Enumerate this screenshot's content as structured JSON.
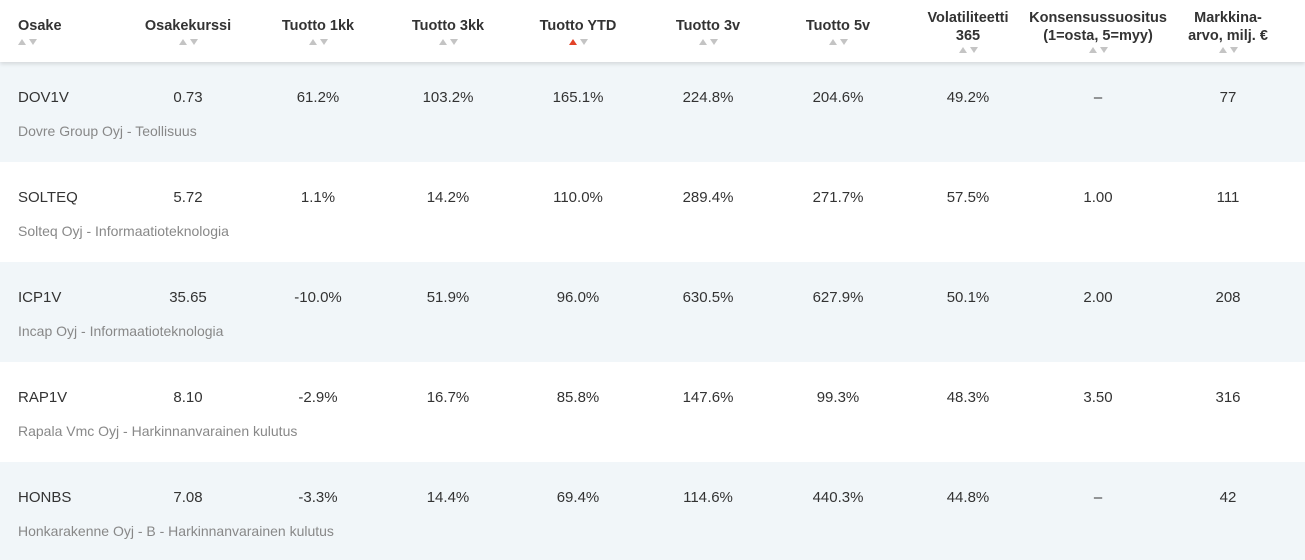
{
  "columns": [
    {
      "key": "ticker",
      "label": "Osake"
    },
    {
      "key": "price",
      "label": "Osakekurssi"
    },
    {
      "key": "ret_1m",
      "label": "Tuotto 1kk"
    },
    {
      "key": "ret_3m",
      "label": "Tuotto 3kk"
    },
    {
      "key": "ret_ytd",
      "label": "Tuotto YTD",
      "sort": "ascending-active"
    },
    {
      "key": "ret_3y",
      "label": "Tuotto 3v"
    },
    {
      "key": "ret_5y",
      "label": "Tuotto 5v"
    },
    {
      "key": "vol",
      "label_line1": "Volatiliteetti",
      "label_line2": "365"
    },
    {
      "key": "cons",
      "label_line1": "Konsensussuositus",
      "label_line2": "(1=osta, 5=myy)"
    },
    {
      "key": "mcap",
      "label_line1": "Markkina-",
      "label_line2": "arvo, milj. €"
    }
  ],
  "sort_colors": {
    "inactive": "#c4c4c4",
    "active": "#e24329"
  },
  "rows": [
    {
      "ticker": "DOV1V",
      "price": "0.73",
      "ret_1m": "61.2%",
      "ret_3m": "103.2%",
      "ret_ytd": "165.1%",
      "ret_3y": "224.8%",
      "ret_5y": "204.6%",
      "vol": "49.2%",
      "cons": "–",
      "mcap": "77",
      "desc": "Dovre Group Oyj - Teollisuus"
    },
    {
      "ticker": "SOLTEQ",
      "price": "5.72",
      "ret_1m": "1.1%",
      "ret_3m": "14.2%",
      "ret_ytd": "110.0%",
      "ret_3y": "289.4%",
      "ret_5y": "271.7%",
      "vol": "57.5%",
      "cons": "1.00",
      "mcap": "111",
      "desc": "Solteq Oyj - Informaatioteknologia"
    },
    {
      "ticker": "ICP1V",
      "price": "35.65",
      "ret_1m": "-10.0%",
      "ret_3m": "51.9%",
      "ret_ytd": "96.0%",
      "ret_3y": "630.5%",
      "ret_5y": "627.9%",
      "vol": "50.1%",
      "cons": "2.00",
      "mcap": "208",
      "desc": "Incap Oyj - Informaatioteknologia"
    },
    {
      "ticker": "RAP1V",
      "price": "8.10",
      "ret_1m": "-2.9%",
      "ret_3m": "16.7%",
      "ret_ytd": "85.8%",
      "ret_3y": "147.6%",
      "ret_5y": "99.3%",
      "vol": "48.3%",
      "cons": "3.50",
      "mcap": "316",
      "desc": "Rapala Vmc Oyj - Harkinnanvarainen kulutus"
    },
    {
      "ticker": "HONBS",
      "price": "7.08",
      "ret_1m": "-3.3%",
      "ret_3m": "14.4%",
      "ret_ytd": "69.4%",
      "ret_3y": "114.6%",
      "ret_5y": "440.3%",
      "vol": "44.8%",
      "cons": "–",
      "mcap": "42",
      "desc": "Honkarakenne Oyj - B - Harkinnanvarainen kulutus"
    }
  ]
}
